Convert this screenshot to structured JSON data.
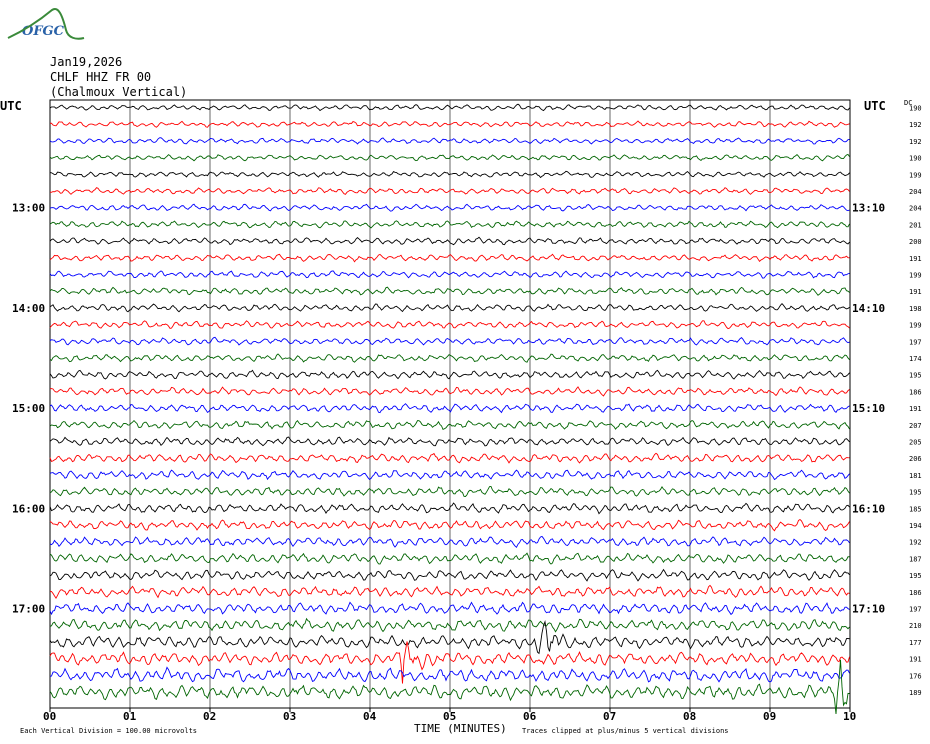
{
  "logo": {
    "text": "OFGC"
  },
  "header": {
    "date": "Jan19,2026",
    "station": "CHLF HHZ FR 00",
    "location": "(Chalmoux Vertical)"
  },
  "chart_data": {
    "type": "line",
    "title": "",
    "left_axis_label": "UTC",
    "right_axis_label": "UTC",
    "right_column_label": "DC",
    "xlabel": "TIME (MINUTES)",
    "x_ticks": [
      "00",
      "01",
      "02",
      "03",
      "04",
      "05",
      "06",
      "07",
      "08",
      "09",
      "10"
    ],
    "xlim": [
      0,
      10
    ],
    "left_hour_labels": [
      {
        "row": 6,
        "label": "13:00"
      },
      {
        "row": 12,
        "label": "14:00"
      },
      {
        "row": 18,
        "label": "15:00"
      },
      {
        "row": 24,
        "label": "16:00"
      },
      {
        "row": 30,
        "label": "17:00"
      }
    ],
    "right_hour_labels": [
      {
        "row": 6,
        "label": "13:10"
      },
      {
        "row": 12,
        "label": "14:10"
      },
      {
        "row": 18,
        "label": "15:10"
      },
      {
        "row": 24,
        "label": "16:10"
      },
      {
        "row": 30,
        "label": "17:10"
      }
    ],
    "trace_colors": [
      "#000000",
      "#ff0000",
      "#0000ff",
      "#006400"
    ],
    "dc_offsets": [
      190,
      192,
      192,
      190,
      199,
      204,
      204,
      201,
      200,
      191,
      199,
      191,
      198,
      199,
      197,
      174,
      195,
      186,
      191,
      207,
      205,
      206,
      181,
      195,
      185,
      194,
      192,
      187,
      195,
      186,
      197,
      210,
      177,
      191,
      176,
      189
    ],
    "row_amplitudes": [
      1,
      1,
      1,
      1,
      1,
      1.1,
      1.1,
      1.2,
      1.2,
      1.2,
      1.2,
      1.3,
      1.3,
      1.3,
      1.3,
      1.3,
      1.4,
      1.4,
      1.5,
      1.5,
      1.5,
      1.6,
      1.6,
      1.6,
      1.7,
      1.7,
      1.7,
      1.8,
      1.8,
      1.9,
      2.0,
      2.1,
      2.2,
      2.3,
      2.4,
      2.5
    ],
    "events": [
      {
        "row": 32,
        "minute": 6.1,
        "amplitude": 3
      },
      {
        "row": 33,
        "minute": 4.4,
        "amplitude": 3
      },
      {
        "row": 35,
        "minute": 9.85,
        "amplitude": 4
      }
    ],
    "footer_left": "Each Vertical Division =  100.00 microvolts",
    "footer_right": "Traces clipped at plus/minus 5 vertical divisions"
  }
}
